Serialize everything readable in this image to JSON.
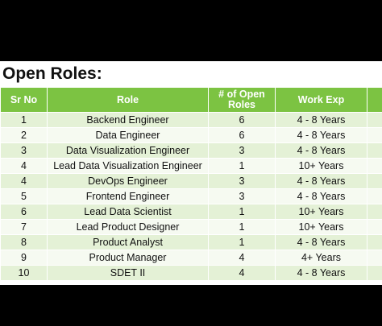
{
  "title": "Open Roles:",
  "table": {
    "headers": {
      "sr_no": "Sr No",
      "role": "Role",
      "open_roles_line1": "# of Open",
      "open_roles_line2": "Roles",
      "work_exp": "Work Exp"
    },
    "rows": [
      {
        "sr": "1",
        "role": "Backend Engineer",
        "open": "6",
        "exp": "4 - 8 Years"
      },
      {
        "sr": "2",
        "role": "Data Engineer",
        "open": "6",
        "exp": "4 - 8 Years"
      },
      {
        "sr": "3",
        "role": "Data Visualization Engineer",
        "open": "3",
        "exp": "4 - 8 Years"
      },
      {
        "sr": "4",
        "role": "Lead Data Visualization Engineer",
        "open": "1",
        "exp": "10+ Years"
      },
      {
        "sr": "4",
        "role": "DevOps Engineer",
        "open": "3",
        "exp": "4 - 8 Years"
      },
      {
        "sr": "5",
        "role": "Frontend Engineer",
        "open": "3",
        "exp": "4 - 8 Years"
      },
      {
        "sr": "6",
        "role": "Lead Data Scientist",
        "open": "1",
        "exp": "10+ Years"
      },
      {
        "sr": "7",
        "role": "Lead Product Designer",
        "open": "1",
        "exp": "10+ Years"
      },
      {
        "sr": "8",
        "role": "Product Analyst",
        "open": "1",
        "exp": "4 - 8 Years"
      },
      {
        "sr": "9",
        "role": "Product Manager",
        "open": "4",
        "exp": "4+ Years"
      },
      {
        "sr": "10",
        "role": "SDET II",
        "open": "4",
        "exp": "4 - 8 Years"
      }
    ]
  },
  "colors": {
    "header_green": "#7cc342",
    "row_odd": "#e4f1d6",
    "row_even": "#f6faf1",
    "background": "#000000"
  }
}
